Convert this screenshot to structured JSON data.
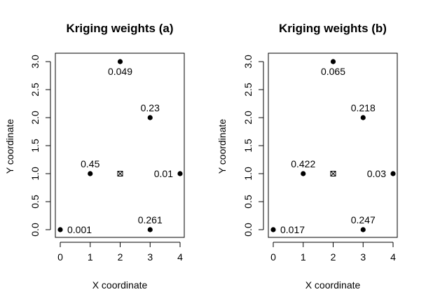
{
  "chart_data": [
    {
      "type": "scatter",
      "title": "Kriging weights (a)",
      "xlabel": "X coordinate",
      "ylabel": "Y coordinate",
      "xlim": [
        0,
        4
      ],
      "ylim": [
        0,
        3
      ],
      "xticks": [
        "0",
        "1",
        "2",
        "3",
        "4"
      ],
      "yticks": [
        "0.0",
        "0.5",
        "1.0",
        "1.5",
        "2.0",
        "2.5",
        "3.0"
      ],
      "grid": false,
      "points": [
        {
          "x": 0,
          "y": 0,
          "label": "0.001"
        },
        {
          "x": 1,
          "y": 1,
          "label": "0.45"
        },
        {
          "x": 2,
          "y": 3,
          "label": "0.049"
        },
        {
          "x": 3,
          "y": 2,
          "label": "0.23"
        },
        {
          "x": 3,
          "y": 0,
          "label": "0.261"
        },
        {
          "x": 4,
          "y": 1,
          "label": "0.01"
        }
      ],
      "target": {
        "x": 2,
        "y": 1,
        "marker": "crossed-box"
      }
    },
    {
      "type": "scatter",
      "title": "Kriging weights (b)",
      "xlabel": "X coordinate",
      "ylabel": "Y coordinate",
      "xlim": [
        0,
        4
      ],
      "ylim": [
        0,
        3
      ],
      "xticks": [
        "0",
        "1",
        "2",
        "3",
        "4"
      ],
      "yticks": [
        "0.0",
        "0.5",
        "1.0",
        "1.5",
        "2.0",
        "2.5",
        "3.0"
      ],
      "grid": false,
      "points": [
        {
          "x": 0,
          "y": 0,
          "label": "0.017"
        },
        {
          "x": 1,
          "y": 1,
          "label": "0.422"
        },
        {
          "x": 2,
          "y": 3,
          "label": "0.065"
        },
        {
          "x": 3,
          "y": 2,
          "label": "0.218"
        },
        {
          "x": 3,
          "y": 0,
          "label": "0.247"
        },
        {
          "x": 4,
          "y": 1,
          "label": "0.03"
        }
      ],
      "target": {
        "x": 2,
        "y": 1,
        "marker": "crossed-box"
      }
    }
  ],
  "colors": {
    "points": "#000000",
    "background": "#ffffff"
  }
}
